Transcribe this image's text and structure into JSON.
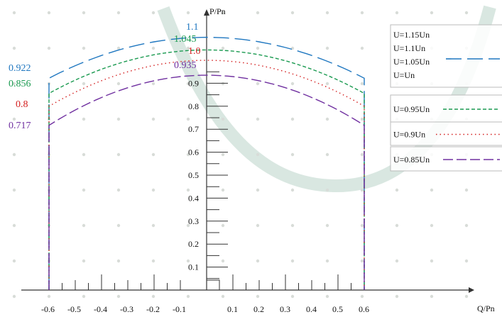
{
  "chart_data": {
    "type": "line",
    "x_axis_label": "Q/Pn",
    "y_axis_label": "P/Pn",
    "xlim": [
      -0.6,
      0.6
    ],
    "ylim": [
      0,
      1.1
    ],
    "x_ticks": [
      "-0.6",
      "-0.5",
      "-0.4",
      "-0.3",
      "-0.2",
      "-0.1",
      "0.1",
      "0.2",
      "0.3",
      "0.4",
      "0.5",
      "0.6"
    ],
    "y_ticks": [
      "0.1",
      "0.2",
      "0.3",
      "0.4",
      "0.5",
      "0.6",
      "0.7",
      "0.8",
      "0.9"
    ],
    "series": [
      {
        "legend": "U=1.15Un",
        "peak": 1.1,
        "edge": 0.922,
        "peak_label": "1.1",
        "edge_label": "0.922",
        "color": "#1f77c0",
        "dash": "22,8"
      },
      {
        "legend": "U=1.1Un",
        "peak": 1.1,
        "edge": 0.922,
        "color": "#1f77c0",
        "dash": "22,8",
        "in_legend_only": true
      },
      {
        "legend": "U=1.05Un",
        "peak": 1.045,
        "edge": 0.856,
        "peak_label": "1.045",
        "edge_label": "0.856",
        "color": "#1a9a50",
        "dash": "5,3"
      },
      {
        "legend": "U=Un",
        "peak": 1.0,
        "edge": 0.8,
        "peak_label": "1.0",
        "edge_label": "0.8",
        "color": "#d42020",
        "dash": "1.5,4"
      },
      {
        "legend": "U=0.95Un",
        "peak": 1.045,
        "edge": 0.856,
        "color": "#1a9a50",
        "dash": "5,3",
        "in_legend_only": true
      },
      {
        "legend": "U=0.9Un",
        "peak": 1.0,
        "edge": 0.8,
        "color": "#d42020",
        "dash": "1.5,4",
        "in_legend_only": true
      },
      {
        "legend": "U=0.85Un",
        "peak": 0.935,
        "edge": 0.717,
        "peak_label": "0.935",
        "edge_label": "0.717",
        "color": "#7030a0",
        "dash": "14,5"
      }
    ],
    "legend_groups": [
      {
        "entries": [
          "U=1.15Un",
          "U=1.1Un",
          "U=1.05Un",
          "U=Un"
        ],
        "color": "#1f77c0",
        "dash": "22,8"
      },
      {
        "entries": [
          "U=0.95Un"
        ],
        "color": "#1a9a50",
        "dash": "5,3"
      },
      {
        "entries": [
          "U=0.9Un"
        ],
        "color": "#d42020",
        "dash": "1.5,4"
      },
      {
        "entries": [
          "U=0.85Un"
        ],
        "color": "#7030a0",
        "dash": "14,5"
      }
    ]
  }
}
